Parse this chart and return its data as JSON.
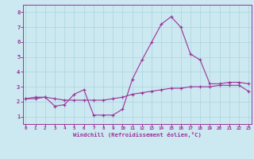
{
  "xlabel": "Windchill (Refroidissement éolien,°C)",
  "bg_color": "#cce8f0",
  "line_color": "#993399",
  "grid_color": "#aad4e0",
  "x_data": [
    0,
    1,
    2,
    3,
    4,
    5,
    6,
    7,
    8,
    9,
    10,
    11,
    12,
    13,
    14,
    15,
    16,
    17,
    18,
    19,
    20,
    21,
    22,
    23
  ],
  "y_line1": [
    2.2,
    2.3,
    2.3,
    1.7,
    1.8,
    2.5,
    2.8,
    1.1,
    1.1,
    1.1,
    1.5,
    3.5,
    4.8,
    6.0,
    7.2,
    7.7,
    7.0,
    5.2,
    4.8,
    3.2,
    3.2,
    3.3,
    3.3,
    3.2
  ],
  "y_line2": [
    2.2,
    2.2,
    2.3,
    2.2,
    2.1,
    2.1,
    2.1,
    2.1,
    2.1,
    2.2,
    2.3,
    2.5,
    2.6,
    2.7,
    2.8,
    2.9,
    2.9,
    3.0,
    3.0,
    3.0,
    3.1,
    3.1,
    3.1,
    2.7
  ],
  "xlim": [
    -0.3,
    23.3
  ],
  "ylim": [
    0.5,
    8.5
  ],
  "yticks": [
    1,
    2,
    3,
    4,
    5,
    6,
    7,
    8
  ],
  "xticks": [
    0,
    1,
    2,
    3,
    4,
    5,
    6,
    7,
    8,
    9,
    10,
    11,
    12,
    13,
    14,
    15,
    16,
    17,
    18,
    19,
    20,
    21,
    22,
    23
  ]
}
